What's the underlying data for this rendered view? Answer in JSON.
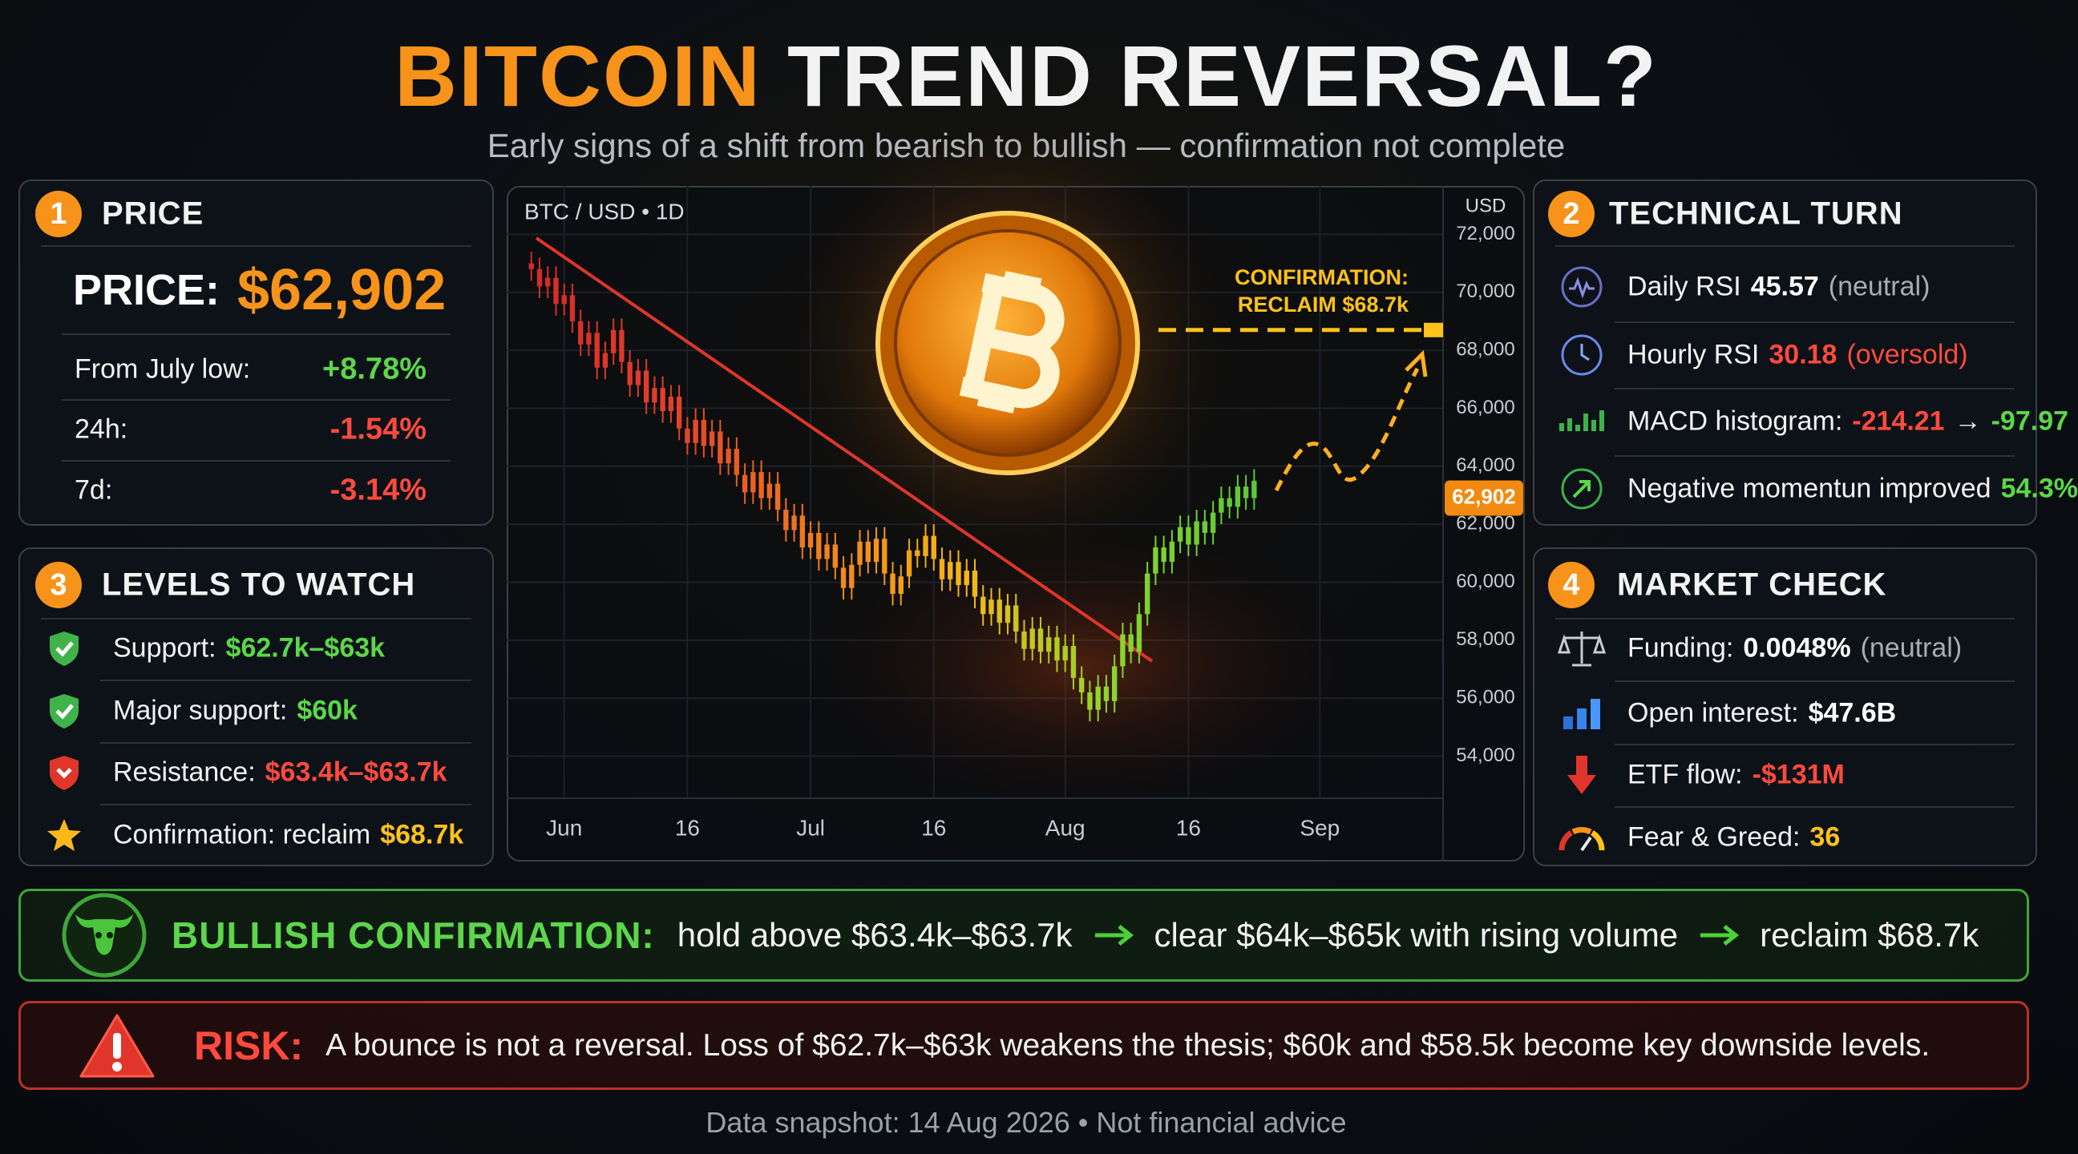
{
  "header": {
    "title_accent": "BITCOIN",
    "title_rest": "TREND REVERSAL?",
    "subtitle": "Early signs of a shift from bearish to bullish — confirmation not complete"
  },
  "price_panel": {
    "badge": "1",
    "title": "PRICE",
    "price_label": "PRICE:",
    "price": "$62,902",
    "rows": [
      {
        "label": "From July low:",
        "value": "+8.78%"
      },
      {
        "label": "24h:",
        "value": "-1.54%"
      },
      {
        "label": "7d:",
        "value": "-3.14%"
      }
    ]
  },
  "technical_panel": {
    "badge": "2",
    "title": "TECHNICAL TURN",
    "rows": [
      {
        "label": "Daily RSI",
        "value": "45.57",
        "note": "(neutral)"
      },
      {
        "label": "Hourly RSI",
        "value": "30.18",
        "note": "(oversold)"
      },
      {
        "label": "MACD histogram:",
        "value": "-214.21",
        "arrow": "→",
        "value2": "-97.97"
      },
      {
        "label": "Negative momentun improved",
        "value": "54.3%"
      }
    ]
  },
  "levels_panel": {
    "badge": "3",
    "title": "LEVELS TO WATCH",
    "rows": [
      {
        "label": "Support:",
        "value": "$62.7k–$63k"
      },
      {
        "label": "Major support:",
        "value": "$60k"
      },
      {
        "label": "Resistance:",
        "value": "$63.4k–$63.7k"
      },
      {
        "label": "Confirmation: reclaim",
        "value": "$68.7k"
      }
    ]
  },
  "market_panel": {
    "badge": "4",
    "title": "MARKET CHECK",
    "rows": [
      {
        "label": "Funding:",
        "value": "0.0048%",
        "note": "(neutral)"
      },
      {
        "label": "Open interest:",
        "value": "$47.6B"
      },
      {
        "label": "ETF flow:",
        "value": "-$131M"
      },
      {
        "label": "Fear & Greed:",
        "value": "36"
      }
    ]
  },
  "bullish": {
    "title": "BULLISH CONFIRMATION:",
    "steps": [
      "hold above $63.4k–$63.7k",
      "clear $64k–$65k with rising volume",
      "reclaim $68.7k"
    ]
  },
  "risk": {
    "title": "RISK:",
    "text": "A bounce is not a reversal. Loss of $62.7k–$63k weakens the thesis; $60k and $58.5k become key downside levels."
  },
  "footer": "Data snapshot: 14 Aug 2026 • Not financial advice",
  "chart_data": {
    "type": "candlestick",
    "label": "BTC / USD • 1D",
    "y_unit": "USD",
    "x": [
      "05-28",
      "05-29",
      "05-30",
      "05-31",
      "06-01",
      "06-02",
      "06-03",
      "06-04",
      "06-05",
      "06-06",
      "06-07",
      "06-08",
      "06-09",
      "06-10",
      "06-11",
      "06-12",
      "06-13",
      "06-14",
      "06-15",
      "06-16",
      "06-17",
      "06-18",
      "06-19",
      "06-20",
      "06-21",
      "06-22",
      "06-23",
      "06-24",
      "06-25",
      "06-26",
      "06-27",
      "06-28",
      "06-29",
      "06-30",
      "07-01",
      "07-02",
      "07-03",
      "07-04",
      "07-05",
      "07-06",
      "07-07",
      "07-08",
      "07-09",
      "07-10",
      "07-11",
      "07-12",
      "07-13",
      "07-14",
      "07-15",
      "07-16",
      "07-17",
      "07-18",
      "07-19",
      "07-20",
      "07-21",
      "07-22",
      "07-23",
      "07-24",
      "07-25",
      "07-26",
      "07-27",
      "07-28",
      "07-29",
      "07-30",
      "07-31",
      "08-01",
      "08-02",
      "08-03",
      "08-04",
      "08-05",
      "08-06",
      "08-07",
      "08-08",
      "08-09",
      "08-10",
      "08-11",
      "08-12",
      "08-13",
      "08-14",
      "08-15",
      "08-16",
      "08-17",
      "08-18",
      "08-19",
      "08-20",
      "08-21",
      "08-22",
      "08-23",
      "08-24"
    ],
    "open": [
      71000,
      70800,
      70200,
      70500,
      69600,
      69900,
      69000,
      68200,
      68600,
      67400,
      67900,
      68700,
      67600,
      66800,
      67300,
      66200,
      66700,
      65900,
      66400,
      65300,
      64800,
      65600,
      64700,
      65200,
      64100,
      64600,
      63700,
      63100,
      63800,
      62900,
      63400,
      62500,
      61800,
      62300,
      61200,
      61700,
      60800,
      61300,
      60500,
      59800,
      60600,
      61400,
      60700,
      61500,
      60300,
      59600,
      60200,
      61100,
      60900,
      61600,
      60800,
      60100,
      60700,
      59900,
      60400,
      59500,
      58900,
      59400,
      58600,
      59200,
      58300,
      57700,
      58400,
      57600,
      58100,
      57300,
      57800,
      56700,
      56200,
      55600,
      56400,
      55900,
      57100,
      58200,
      57600,
      58900,
      60300,
      61200,
      60700,
      61400,
      61900,
      61300,
      62100,
      61700,
      62400,
      62900,
      62600,
      63300,
      62900
    ],
    "high": [
      71400,
      71200,
      70900,
      70900,
      70300,
      70300,
      69400,
      69000,
      69000,
      68300,
      69100,
      69100,
      68000,
      67700,
      67700,
      67100,
      67100,
      66800,
      66800,
      65700,
      66000,
      66000,
      65600,
      65600,
      65000,
      65000,
      64100,
      64200,
      64200,
      63800,
      63800,
      62900,
      62700,
      62700,
      62100,
      62100,
      61700,
      61700,
      60900,
      61000,
      61800,
      61800,
      61900,
      61900,
      60700,
      60600,
      61500,
      61500,
      62000,
      62000,
      61200,
      61100,
      61100,
      60800,
      60800,
      59900,
      59800,
      59800,
      59600,
      59600,
      58700,
      58800,
      58800,
      58500,
      58500,
      58200,
      58200,
      57100,
      56600,
      56800,
      56800,
      57500,
      58600,
      58600,
      59300,
      60700,
      61600,
      61600,
      61800,
      62300,
      62300,
      62500,
      62500,
      62800,
      63300,
      63300,
      63700,
      63700,
      63900
    ],
    "low": [
      70400,
      69800,
      69800,
      69200,
      69200,
      68600,
      67800,
      67800,
      67000,
      67000,
      67500,
      67200,
      66400,
      66400,
      65800,
      65800,
      65500,
      65500,
      64900,
      64400,
      64400,
      64300,
      64300,
      63700,
      63700,
      63300,
      62700,
      62700,
      62500,
      62500,
      62100,
      61400,
      61400,
      60800,
      60800,
      60400,
      60400,
      60100,
      59400,
      59400,
      60200,
      60300,
      60300,
      59900,
      59200,
      59200,
      59800,
      60500,
      60500,
      60400,
      59700,
      59700,
      59500,
      59500,
      59100,
      58500,
      58500,
      58200,
      58200,
      57900,
      57300,
      57300,
      57200,
      57200,
      56900,
      56900,
      56300,
      55800,
      55200,
      55200,
      55500,
      55500,
      56700,
      57200,
      57200,
      58500,
      59900,
      60300,
      60300,
      61000,
      60900,
      60900,
      61300,
      61300,
      62000,
      62200,
      62200,
      62500,
      62500
    ],
    "close": [
      70800,
      70200,
      70500,
      69600,
      69900,
      69000,
      68200,
      68600,
      67400,
      67900,
      68700,
      67600,
      66800,
      67300,
      66200,
      66700,
      65900,
      66400,
      65300,
      64800,
      65600,
      64700,
      65200,
      64100,
      64600,
      63700,
      63100,
      63800,
      62900,
      63400,
      62500,
      61800,
      62300,
      61200,
      61700,
      60800,
      61300,
      60500,
      59800,
      60600,
      61400,
      60700,
      61500,
      60300,
      59600,
      60200,
      61100,
      60900,
      61600,
      60800,
      60100,
      60700,
      59900,
      60400,
      59500,
      58900,
      59400,
      58600,
      59200,
      58300,
      57700,
      58400,
      57600,
      58100,
      57300,
      57800,
      56700,
      56200,
      55600,
      56400,
      55900,
      57100,
      58200,
      57600,
      58900,
      60300,
      61200,
      60700,
      61400,
      61900,
      61300,
      62100,
      61700,
      62400,
      62900,
      62600,
      63300,
      62900,
      63500
    ],
    "xlim": [
      "05-25",
      "09-16"
    ],
    "xticks": [
      {
        "value": "06-01",
        "label": "Jun"
      },
      {
        "value": "06-16",
        "label": "16"
      },
      {
        "value": "07-01",
        "label": "Jul"
      },
      {
        "value": "07-16",
        "label": "16"
      },
      {
        "value": "08-01",
        "label": "Aug"
      },
      {
        "value": "08-16",
        "label": "16"
      },
      {
        "value": "09-01",
        "label": "Sep"
      }
    ],
    "ylim": [
      52550,
      73670
    ],
    "yticks": [
      {
        "value": 54000,
        "label": "54,000"
      },
      {
        "value": 56000,
        "label": "56,000"
      },
      {
        "value": 58000,
        "label": "58,000"
      },
      {
        "value": 60000,
        "label": "60,000"
      },
      {
        "value": 62000,
        "label": "62,000"
      },
      {
        "value": 64000,
        "label": "64,000"
      },
      {
        "value": 66000,
        "label": "66,000"
      },
      {
        "value": 68000,
        "label": "68,000"
      },
      {
        "value": 70000,
        "label": "70,000"
      },
      {
        "value": 72000,
        "label": "72,000"
      }
    ],
    "grid": true,
    "color_stops": [
      "#d42a2a",
      "#e3402a",
      "#f0801a",
      "#f7b814",
      "#8cd62a",
      "#5cc83a"
    ],
    "price_tag": {
      "value": 62902,
      "label": "62,902",
      "color": "#f28a12"
    },
    "confirmation": {
      "value": 68700,
      "label_lines": [
        "CONFIRMATION:",
        "RECLAIM $68.7k"
      ],
      "color": "#ffc21a"
    }
  }
}
